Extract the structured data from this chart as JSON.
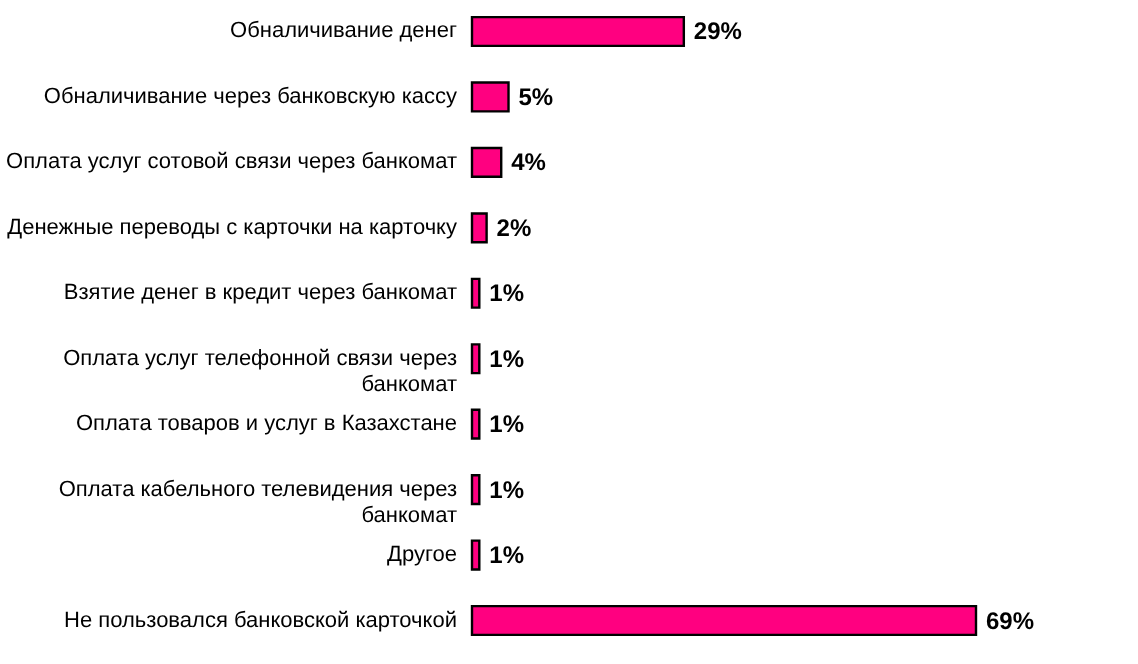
{
  "chart_data": {
    "type": "bar",
    "orientation": "horizontal",
    "tick_labels": "y",
    "categories": [
      "Обналичивание денег",
      "Обналичивание через банковскую кассу",
      "Оплата услуг сотовой связи через банкомат",
      "Денежные переводы с карточки на карточку",
      "Взятие денег в кредит через банкомат",
      "Оплата услуг телефонной связи через банкомат",
      "Оплата товаров и услуг в Казахстане",
      "Оплата кабельного телевидения через банкомат",
      "Другое",
      "Не пользовался банковской карточкой"
    ],
    "values": [
      29,
      5,
      4,
      2,
      1,
      1,
      1,
      1,
      1,
      69
    ],
    "value_labels": [
      "29%",
      "5%",
      "4%",
      "2%",
      "1%",
      "1%",
      "1%",
      "1%",
      "1%",
      "69%"
    ],
    "color": "#ff0080"
  }
}
